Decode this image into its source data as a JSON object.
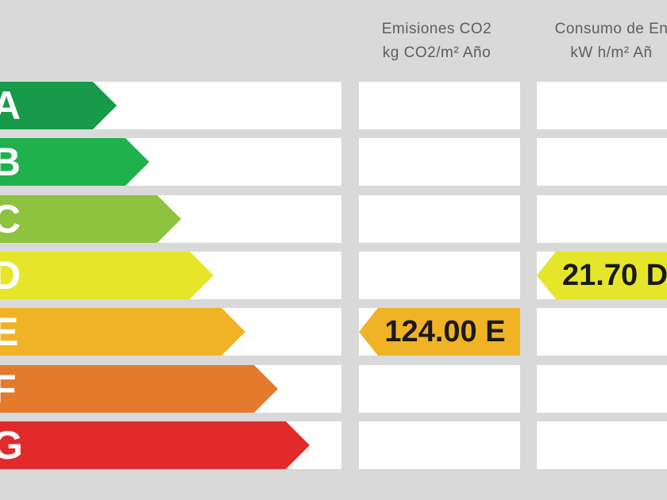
{
  "headers": {
    "emissions_line1": "Emisiones CO2",
    "emissions_line2": "kg CO2/m² Año",
    "consumption_line1": "Consumo de En",
    "consumption_line2": "kW h/m² Añ"
  },
  "ratings": [
    {
      "label": "A",
      "color": "#179a4a"
    },
    {
      "label": "B",
      "color": "#1fb14b"
    },
    {
      "label": "C",
      "color": "#8dc33f"
    },
    {
      "label": "D",
      "color": "#e5e629"
    },
    {
      "label": "E",
      "color": "#f0b326"
    },
    {
      "label": "F",
      "color": "#e47a2c"
    },
    {
      "label": "G",
      "color": "#e22a2b"
    }
  ],
  "emissions_result": {
    "text": "124.00 E",
    "rating": "E",
    "color": "#f0b326"
  },
  "consumption_result": {
    "text": "21.70 D",
    "rating": "D",
    "color": "#e5e629"
  }
}
